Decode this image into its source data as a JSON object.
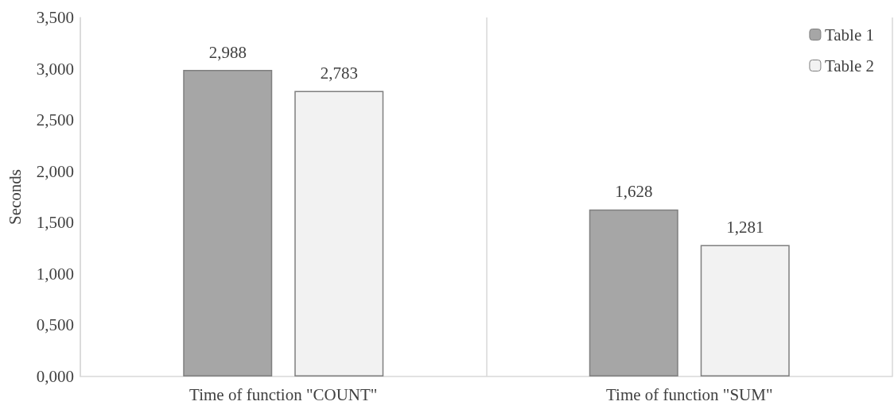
{
  "chart_data": {
    "type": "bar",
    "ylabel": "Seconds",
    "categories": [
      "Time of function \"COUNT\"",
      "Time of function \"SUM\""
    ],
    "series": [
      {
        "name": "Table 1",
        "color": "#a6a6a6",
        "values": [
          2.988,
          1.628
        ],
        "value_labels": [
          "2,988",
          "1,628"
        ]
      },
      {
        "name": "Table 2",
        "color": "#f2f2f2",
        "values": [
          2.783,
          1.281
        ],
        "value_labels": [
          "2,783",
          "1,281"
        ]
      }
    ],
    "ylim": [
      0,
      3.5
    ],
    "yticks": [
      {
        "value": 0,
        "label": "0,000"
      },
      {
        "value": 0.5,
        "label": "0,500"
      },
      {
        "value": 1,
        "label": "1,000"
      },
      {
        "value": 1.5,
        "label": "1,500"
      },
      {
        "value": 2,
        "label": "2,000"
      },
      {
        "value": 2.5,
        "label": "2,500"
      },
      {
        "value": 3,
        "label": "3,000"
      },
      {
        "value": 3.5,
        "label": "3,500"
      }
    ],
    "grid": "x",
    "legend": "top right"
  }
}
